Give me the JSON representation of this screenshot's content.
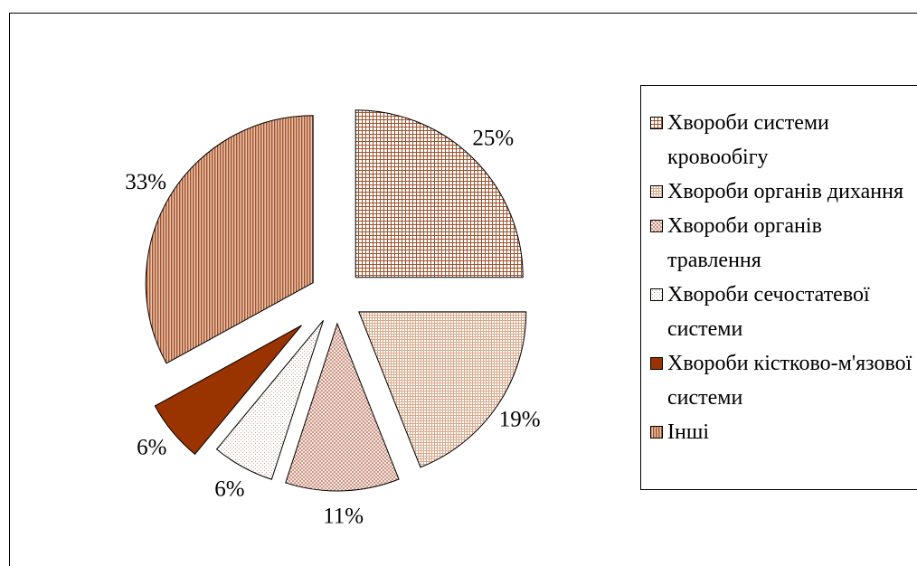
{
  "chart_data": {
    "type": "pie",
    "categories": [
      "Хвороби системи кровообігу",
      "Хвороби органів дихання",
      "Хвороби органів травлення",
      "Хвороби сечостатевої системи",
      "Хвороби кістково-м'язової системи",
      "Інші"
    ],
    "values": [
      25,
      19,
      11,
      6,
      6,
      33
    ],
    "value_labels": [
      "25%",
      "19%",
      "11%",
      "6%",
      "6%",
      "33%"
    ],
    "colors": [
      "#a0522d",
      "#d9a88a",
      "#c4806a",
      "#c8a090",
      "#993300",
      "#a0522d"
    ],
    "legend": "right"
  }
}
